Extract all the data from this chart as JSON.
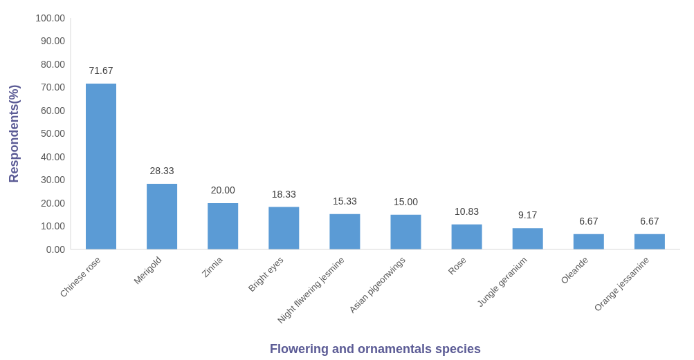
{
  "chart_data": {
    "type": "bar",
    "xlabel": "Flowering and ornamentals species",
    "ylabel": "Respondents(%)",
    "categories": [
      "Chinese rose",
      "Merigold",
      "Zinnia",
      "Bright eyes",
      "Night fliwering jesmine",
      "Asian pigeonwings",
      "Rose",
      "Jungle geranium",
      "Oleande",
      "Orange jessamine"
    ],
    "values": [
      71.67,
      28.33,
      20.0,
      18.33,
      15.33,
      15.0,
      10.83,
      9.17,
      6.67,
      6.67
    ],
    "value_labels": [
      "71.67",
      "28.33",
      "20.00",
      "18.33",
      "15.33",
      "15.00",
      "10.83",
      "9.17",
      "6.67",
      "6.67"
    ],
    "color": "#5b9bd5",
    "ylim": [
      0,
      100
    ],
    "yticks": [
      {
        "value": 0,
        "label": "0.00"
      },
      {
        "value": 10,
        "label": "10.00"
      },
      {
        "value": 20,
        "label": "20.00"
      },
      {
        "value": 30,
        "label": "30.00"
      },
      {
        "value": 40,
        "label": "40.00"
      },
      {
        "value": 50,
        "label": "50.00"
      },
      {
        "value": 60,
        "label": "60.00"
      },
      {
        "value": 70,
        "label": "70.00"
      },
      {
        "value": 80,
        "label": "80.00"
      },
      {
        "value": 90,
        "label": "90.00"
      },
      {
        "value": 100,
        "label": "100.00"
      }
    ]
  }
}
